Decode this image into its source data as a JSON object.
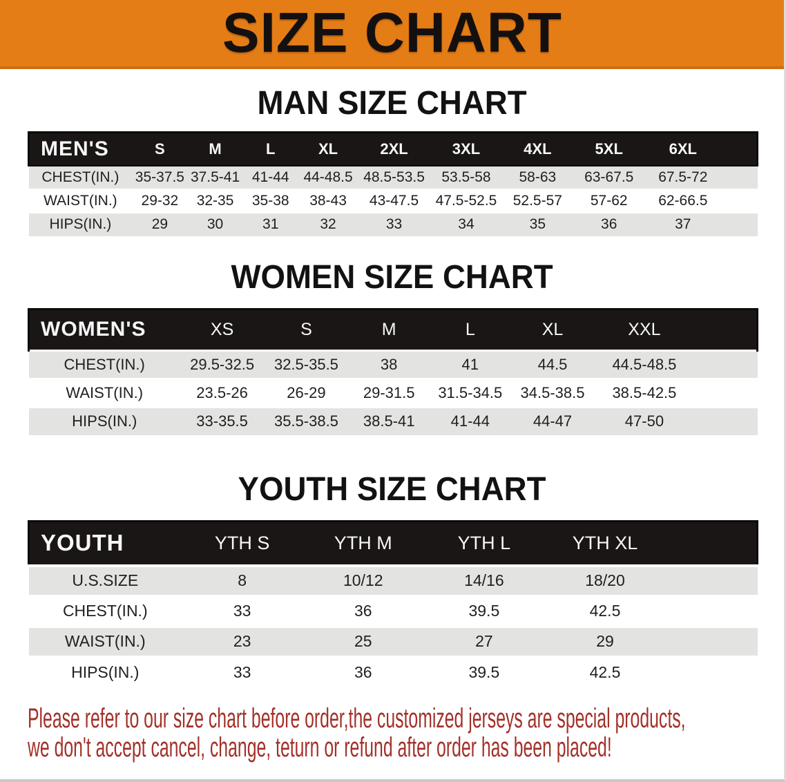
{
  "banner": {
    "title": "SIZE CHART"
  },
  "sections": [
    {
      "title": "MAN SIZE CHART",
      "header": [
        "MEN'S",
        "S",
        "M",
        "L",
        "XL",
        "2XL",
        "3XL",
        "4XL",
        "5XL",
        "6XL"
      ],
      "rows": [
        [
          "CHEST(IN.)",
          "35-37.5",
          "37.5-41",
          "41-44",
          "44-48.5",
          "48.5-53.5",
          "53.5-58",
          "58-63",
          "63-67.5",
          "67.5-72"
        ],
        [
          "WAIST(IN.)",
          "29-32",
          "32-35",
          "35-38",
          "38-43",
          "43-47.5",
          "47.5-52.5",
          "52.5-57",
          "57-62",
          "62-66.5"
        ],
        [
          "HIPS(IN.)",
          "29",
          "30",
          "31",
          "32",
          "33",
          "34",
          "35",
          "36",
          "37"
        ]
      ]
    },
    {
      "title": "WOMEN SIZE CHART",
      "header": [
        "WOMEN'S",
        "XS",
        "S",
        "M",
        "L",
        "XL",
        "XXL"
      ],
      "rows": [
        [
          "CHEST(IN.)",
          "29.5-32.5",
          "32.5-35.5",
          "38",
          "41",
          "44.5",
          "44.5-48.5"
        ],
        [
          "WAIST(IN.)",
          "23.5-26",
          "26-29",
          "29-31.5",
          "31.5-34.5",
          "34.5-38.5",
          "38.5-42.5"
        ],
        [
          "HIPS(IN.)",
          "33-35.5",
          "35.5-38.5",
          "38.5-41",
          "41-44",
          "44-47",
          "47-50"
        ]
      ]
    },
    {
      "title": "YOUTH SIZE CHART",
      "header": [
        "YOUTH",
        "YTH S",
        "YTH M",
        "YTH L",
        "YTH XL"
      ],
      "rows": [
        [
          "U.S.SIZE",
          "8",
          "10/12",
          "14/16",
          "18/20"
        ],
        [
          "CHEST(IN.)",
          "33",
          "36",
          "39.5",
          "42.5"
        ],
        [
          "WAIST(IN.)",
          "23",
          "25",
          "27",
          "29"
        ],
        [
          "HIPS(IN.)",
          "33",
          "36",
          "39.5",
          "42.5"
        ]
      ]
    }
  ],
  "footer": {
    "lines": [
      "Please refer to our size chart before order,the customized jerseys are special products,",
      "we don't accept cancel, change, teturn or refund after order has been placed!"
    ]
  },
  "colors": {
    "banner_orange": "#E57D17",
    "header_bar_black": "#1B1616",
    "row_stripe_gray": "#E3E3E1",
    "row_stripe_white": "#FFFFFF",
    "notice_red": "#A33029",
    "title_black": "#121212"
  }
}
